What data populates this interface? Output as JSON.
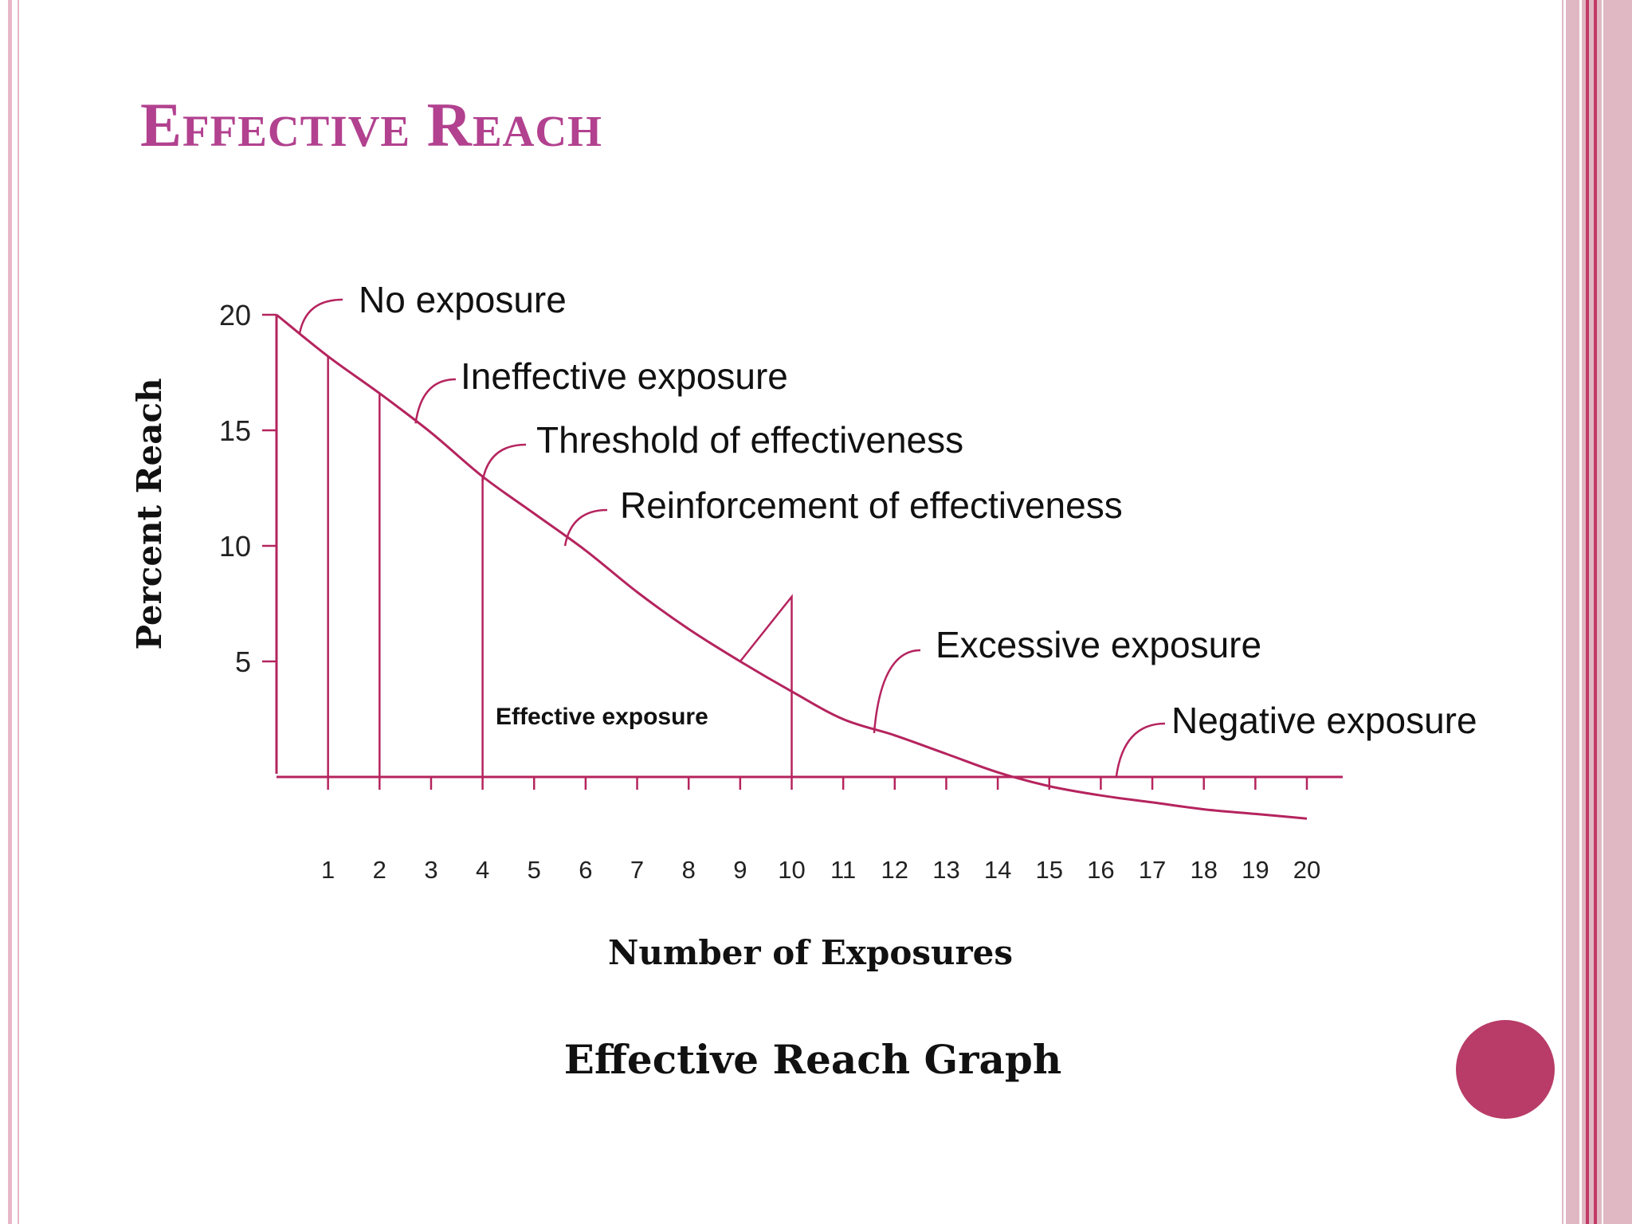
{
  "slide": {
    "title": "Effective Reach",
    "caption": "Effective Reach Graph",
    "colors": {
      "title": "#b2418f",
      "curve": "#b5245e",
      "frame": "#e0b8c4",
      "dot": "#b83c67"
    }
  },
  "chart_data": {
    "type": "line",
    "title": "Effective Reach Graph",
    "xlabel": "Number of Exposures",
    "ylabel": "Percent Reach",
    "xlim": [
      0,
      20
    ],
    "ylim": [
      0,
      20
    ],
    "x_ticks": [
      "1",
      "2",
      "3",
      "4",
      "5",
      "6",
      "7",
      "8",
      "9",
      "10",
      "11",
      "12",
      "13",
      "14",
      "15",
      "16",
      "17",
      "18",
      "19",
      "20"
    ],
    "y_ticks": [
      "5",
      "10",
      "15",
      "20"
    ],
    "grid": false,
    "legend": "none",
    "series": [
      {
        "x": [
          0,
          1,
          2,
          3,
          4,
          5,
          6,
          7,
          8,
          9,
          10,
          11,
          12,
          13,
          14,
          15,
          16,
          17,
          18,
          19,
          20
        ],
        "values": [
          20,
          18.2,
          16.6,
          14.9,
          13.0,
          11.4,
          9.8,
          8.0,
          6.4,
          5.0,
          3.7,
          2.5,
          1.8,
          1.0,
          0.2,
          -0.4,
          -0.8,
          -1.1,
          -1.4,
          -1.6,
          -1.8
        ]
      }
    ],
    "dividers": [
      1,
      2,
      4,
      10
    ],
    "annotations": [
      {
        "text": "No exposure",
        "x": 0.5,
        "y": 19.5
      },
      {
        "text": "Ineffective exposure",
        "x": 2.7,
        "y": 15.5
      },
      {
        "text": "Threshold of effectiveness",
        "x": 4.0,
        "y": 13.0
      },
      {
        "text": "Reinforcement of effectiveness",
        "x": 5.6,
        "y": 10.2
      },
      {
        "text": "Effective exposure",
        "x": 6.7,
        "y": 2.6
      },
      {
        "text": "Excessive exposure",
        "x": 11.6,
        "y": 2.0
      },
      {
        "text": "Negative exposure",
        "x": 16.3,
        "y": 0.0
      }
    ]
  }
}
